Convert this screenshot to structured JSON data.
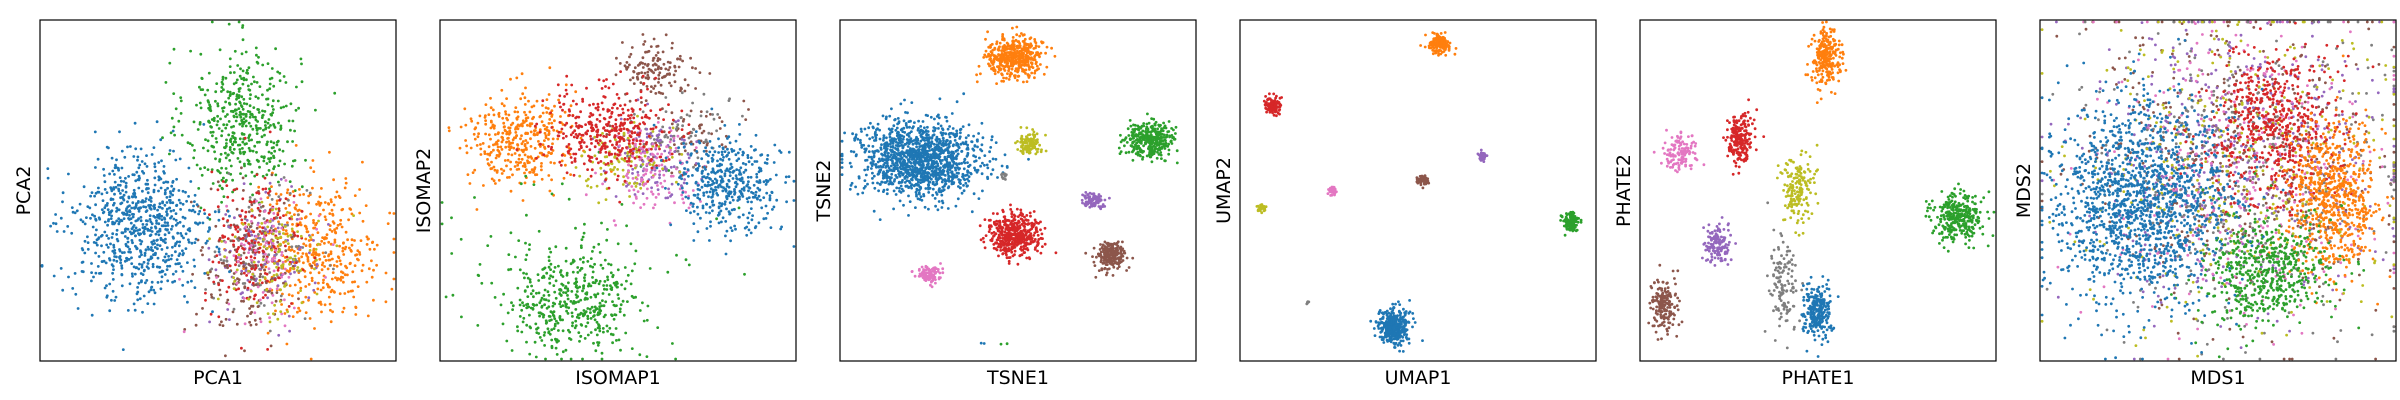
{
  "palette": {
    "blue": "#1f77b4",
    "orange": "#ff7f0e",
    "green": "#2ca02c",
    "red": "#d62728",
    "purple": "#9467bd",
    "brown": "#8c564b",
    "pink": "#e377c2",
    "gray": "#7f7f7f",
    "olive": "#bcbd22"
  },
  "chart_data": [
    {
      "type": "scatter",
      "xlabel": "PCA1",
      "ylabel": "PCA2",
      "xlim": [
        0,
        100
      ],
      "ylim": [
        0,
        100
      ],
      "grid": false,
      "ticks": false,
      "clusters": [
        {
          "color": "green",
          "cx": 57,
          "cy": 70,
          "sx": 8,
          "sy": 11,
          "n": 460
        },
        {
          "color": "orange",
          "cx": 78,
          "cy": 33,
          "sx": 9,
          "sy": 10,
          "n": 420
        },
        {
          "color": "gray",
          "cx": 62,
          "cy": 33,
          "sx": 7,
          "sy": 9,
          "n": 120
        },
        {
          "color": "purple",
          "cx": 63,
          "cy": 32,
          "sx": 7,
          "sy": 9,
          "n": 110
        },
        {
          "color": "brown",
          "cx": 58,
          "cy": 28,
          "sx": 7,
          "sy": 11,
          "n": 160
        },
        {
          "color": "red",
          "cx": 60,
          "cy": 34,
          "sx": 7,
          "sy": 10,
          "n": 170
        },
        {
          "color": "pink",
          "cx": 64,
          "cy": 31,
          "sx": 6,
          "sy": 8,
          "n": 90
        },
        {
          "color": "olive",
          "cx": 66,
          "cy": 30,
          "sx": 7,
          "sy": 9,
          "n": 100
        },
        {
          "color": "blue",
          "cx": 28,
          "cy": 39,
          "sx": 9.5,
          "sy": 11,
          "n": 750
        }
      ]
    },
    {
      "type": "scatter",
      "xlabel": "ISOMAP1",
      "ylabel": "ISOMAP2",
      "xlim": [
        0,
        100
      ],
      "ylim": [
        0,
        100
      ],
      "grid": false,
      "ticks": false,
      "clusters": [
        {
          "color": "brown",
          "cx": 60,
          "cy": 86,
          "sx": 5,
          "sy": 4,
          "n": 140
        },
        {
          "color": "brown",
          "cx": 70,
          "cy": 66,
          "sx": 7,
          "sy": 5,
          "n": 70
        },
        {
          "color": "gray",
          "cx": 68,
          "cy": 68,
          "sx": 7,
          "sy": 5,
          "n": 60
        },
        {
          "color": "orange",
          "cx": 22,
          "cy": 65,
          "sx": 7,
          "sy": 7,
          "n": 380
        },
        {
          "color": "green",
          "cx": 37,
          "cy": 17,
          "sx": 9,
          "sy": 7,
          "n": 420
        },
        {
          "color": "green",
          "cx": 40,
          "cy": 30,
          "sx": 20,
          "sy": 12,
          "n": 90
        },
        {
          "color": "purple",
          "cx": 60,
          "cy": 60,
          "sx": 6,
          "sy": 6,
          "n": 120
        },
        {
          "color": "olive",
          "cx": 52,
          "cy": 60,
          "sx": 6,
          "sy": 5,
          "n": 110
        },
        {
          "color": "pink",
          "cx": 60,
          "cy": 56,
          "sx": 7,
          "sy": 6,
          "n": 130
        },
        {
          "color": "red",
          "cx": 47,
          "cy": 67,
          "sx": 9,
          "sy": 6,
          "n": 380
        },
        {
          "color": "blue",
          "cx": 81,
          "cy": 52,
          "sx": 7,
          "sy": 7,
          "n": 420
        }
      ]
    },
    {
      "type": "scatter",
      "xlabel": "TSNE1",
      "ylabel": "TSNE2",
      "xlim": [
        0,
        100
      ],
      "ylim": [
        0,
        100
      ],
      "grid": false,
      "ticks": false,
      "clusters": [
        {
          "color": "orange",
          "cx": 49,
          "cy": 89,
          "sx": 4,
          "sy": 3,
          "n": 450
        },
        {
          "color": "blue",
          "cx": 22,
          "cy": 59,
          "sx": 8.5,
          "sy": 5.5,
          "n": 1300
        },
        {
          "color": "green",
          "cx": 87,
          "cy": 65,
          "sx": 3.5,
          "sy": 2.5,
          "n": 340
        },
        {
          "color": "olive",
          "cx": 53,
          "cy": 64,
          "sx": 1.8,
          "sy": 1.5,
          "n": 110
        },
        {
          "color": "gray",
          "cx": 46,
          "cy": 54,
          "sx": 0.6,
          "sy": 0.6,
          "n": 12
        },
        {
          "color": "purple",
          "cx": 71,
          "cy": 47,
          "sx": 1.5,
          "sy": 1.1,
          "n": 90
        },
        {
          "color": "red",
          "cx": 49,
          "cy": 37,
          "sx": 3.5,
          "sy": 3,
          "n": 450
        },
        {
          "color": "brown",
          "cx": 76,
          "cy": 31,
          "sx": 2.3,
          "sy": 2,
          "n": 220
        },
        {
          "color": "pink",
          "cx": 25,
          "cy": 25,
          "sx": 1.6,
          "sy": 1.4,
          "n": 110
        },
        {
          "color": "blue",
          "cx": 40,
          "cy": 5,
          "sx": 0.4,
          "sy": 0.4,
          "n": 2
        },
        {
          "color": "green",
          "cx": 46,
          "cy": 5,
          "sx": 0.4,
          "sy": 0.4,
          "n": 2
        }
      ]
    },
    {
      "type": "scatter",
      "xlabel": "UMAP1",
      "ylabel": "UMAP2",
      "xlim": [
        0,
        100
      ],
      "ylim": [
        0,
        100
      ],
      "grid": false,
      "ticks": false,
      "clusters": [
        {
          "color": "orange",
          "cx": 56,
          "cy": 93,
          "sx": 1.5,
          "sy": 1.4,
          "n": 160
        },
        {
          "color": "red",
          "cx": 9,
          "cy": 75,
          "sx": 1.2,
          "sy": 1.2,
          "n": 110
        },
        {
          "color": "purple",
          "cx": 68,
          "cy": 60,
          "sx": 0.6,
          "sy": 0.7,
          "n": 40
        },
        {
          "color": "brown",
          "cx": 51,
          "cy": 53,
          "sx": 0.8,
          "sy": 0.8,
          "n": 50
        },
        {
          "color": "pink",
          "cx": 26,
          "cy": 50,
          "sx": 0.7,
          "sy": 0.6,
          "n": 35
        },
        {
          "color": "olive",
          "cx": 6,
          "cy": 45,
          "sx": 0.6,
          "sy": 0.6,
          "n": 35
        },
        {
          "color": "green",
          "cx": 93,
          "cy": 41,
          "sx": 1.2,
          "sy": 1.4,
          "n": 110
        },
        {
          "color": "gray",
          "cx": 19,
          "cy": 17,
          "sx": 0.3,
          "sy": 0.3,
          "n": 6
        },
        {
          "color": "blue",
          "cx": 43,
          "cy": 10,
          "sx": 2.2,
          "sy": 2.6,
          "n": 380
        }
      ]
    },
    {
      "type": "scatter",
      "xlabel": "PHATE1",
      "ylabel": "PHATE2",
      "xlim": [
        0,
        100
      ],
      "ylim": [
        0,
        100
      ],
      "grid": false,
      "ticks": false,
      "clusters": [
        {
          "color": "orange",
          "cx": 52,
          "cy": 89,
          "sx": 2,
          "sy": 4.5,
          "n": 260
        },
        {
          "color": "red",
          "cx": 28,
          "cy": 65,
          "sx": 1.8,
          "sy": 3.8,
          "n": 210
        },
        {
          "color": "pink",
          "cx": 11,
          "cy": 61,
          "sx": 2.3,
          "sy": 3,
          "n": 130
        },
        {
          "color": "olive",
          "cx": 44,
          "cy": 51,
          "sx": 2.5,
          "sy": 5,
          "n": 170
        },
        {
          "color": "green",
          "cx": 89,
          "cy": 42,
          "sx": 3.5,
          "sy": 3.5,
          "n": 300
        },
        {
          "color": "purple",
          "cx": 22,
          "cy": 34,
          "sx": 1.8,
          "sy": 3,
          "n": 130
        },
        {
          "color": "gray",
          "cx": 40,
          "cy": 22,
          "sx": 2,
          "sy": 7,
          "n": 130
        },
        {
          "color": "brown",
          "cx": 7,
          "cy": 17,
          "sx": 2,
          "sy": 4,
          "n": 170
        },
        {
          "color": "blue",
          "cx": 50,
          "cy": 14,
          "sx": 2,
          "sy": 4,
          "n": 260
        }
      ]
    },
    {
      "type": "scatter",
      "xlabel": "MDS1",
      "ylabel": "MDS2",
      "xlim": [
        0,
        100
      ],
      "ylim": [
        0,
        100
      ],
      "grid": false,
      "ticks": false,
      "clusters": [
        {
          "color": "brown",
          "cx": 55,
          "cy": 58,
          "sx": 22,
          "sy": 22,
          "n": 500
        },
        {
          "color": "purple",
          "cx": 56,
          "cy": 60,
          "sx": 21,
          "sy": 22,
          "n": 450
        },
        {
          "color": "pink",
          "cx": 58,
          "cy": 56,
          "sx": 22,
          "sy": 22,
          "n": 350
        },
        {
          "color": "gray",
          "cx": 57,
          "cy": 55,
          "sx": 22,
          "sy": 23,
          "n": 350
        },
        {
          "color": "olive",
          "cx": 56,
          "cy": 58,
          "sx": 22,
          "sy": 22,
          "n": 350
        },
        {
          "color": "red",
          "cx": 65,
          "cy": 68,
          "sx": 9,
          "sy": 11,
          "n": 550
        },
        {
          "color": "orange",
          "cx": 82,
          "cy": 48,
          "sx": 6,
          "sy": 11,
          "n": 650
        },
        {
          "color": "green",
          "cx": 63,
          "cy": 26,
          "sx": 9,
          "sy": 8,
          "n": 550
        },
        {
          "color": "blue",
          "cx": 28,
          "cy": 46,
          "sx": 12,
          "sy": 15,
          "n": 1500
        }
      ]
    }
  ]
}
